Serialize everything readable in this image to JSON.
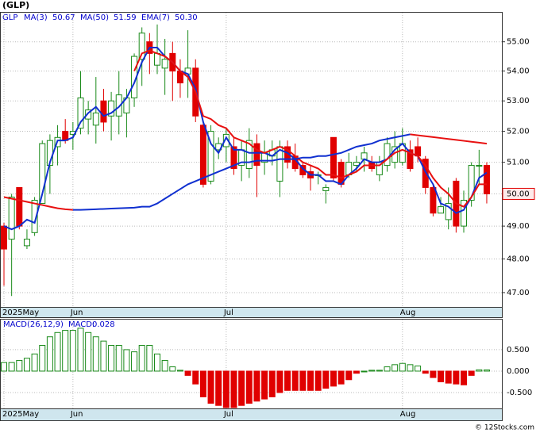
{
  "chart_data": {
    "type": "candlestick",
    "title": "(GLP)",
    "legend": [
      "GLP",
      "MA(3)",
      "50.67",
      "MA(50)",
      "51.59",
      "EMA(7)",
      "50.30"
    ],
    "log_scale": true,
    "grid": true,
    "ylim": [
      46.58,
      56.04
    ],
    "yticks": [
      {
        "value": 55,
        "label": "55.00"
      },
      {
        "value": 54,
        "label": "54.00"
      },
      {
        "value": 53,
        "label": "53.00"
      },
      {
        "value": 52,
        "label": "52.00"
      },
      {
        "value": 51,
        "label": "51.00"
      },
      {
        "value": 50,
        "label": "50.00"
      },
      {
        "value": 49,
        "label": "49.00"
      },
      {
        "value": 48,
        "label": "48.00"
      },
      {
        "value": 47,
        "label": "47.00"
      }
    ],
    "xticks": [
      {
        "value": 0,
        "label": "2025May"
      },
      {
        "value": 9,
        "label": "Jun"
      },
      {
        "value": 29,
        "label": "Jul"
      },
      {
        "value": 52,
        "label": "Aug"
      }
    ],
    "up_color": "#1a8a1a",
    "down_color": "#e00000",
    "open": [
      49.0,
      48.6,
      50.2,
      48.4,
      48.8,
      49.7,
      50.9,
      51.5,
      52.0,
      51.9,
      52.1,
      52.4,
      52.2,
      53.0,
      52.5,
      52.5,
      52.6,
      53.1,
      54.4,
      55.0,
      54.2,
      54.1,
      54.6,
      54.0,
      53.9,
      54.1,
      52.2,
      50.4,
      51.4,
      51.5,
      51.5,
      50.9,
      50.8,
      51.6,
      51.0,
      51.2,
      50.4,
      51.5,
      51.2,
      50.9,
      50.7,
      50.6,
      50.1,
      51.8,
      51.0,
      50.6,
      50.9,
      51.1,
      51.0,
      50.6,
      50.9,
      51.0,
      51.0,
      51.4,
      51.5,
      51.1,
      50.2,
      49.4,
      49.2,
      50.4,
      49.0,
      49.8,
      50.9,
      50.9
    ],
    "high": [
      49.1,
      50.0,
      50.2,
      48.9,
      49.9,
      51.7,
      51.9,
      52.2,
      52.4,
      52.3,
      54.0,
      53.0,
      53.8,
      53.4,
      53.3,
      54.0,
      53.4,
      54.6,
      55.5,
      55.3,
      55.6,
      55.1,
      55.0,
      54.4,
      55.4,
      54.4,
      52.3,
      52.2,
      51.8,
      52.1,
      51.8,
      51.7,
      52.1,
      51.9,
      51.7,
      51.7,
      51.7,
      51.7,
      51.6,
      51.0,
      50.9,
      50.7,
      50.3,
      51.8,
      51.1,
      51.3,
      51.2,
      51.5,
      51.2,
      51.2,
      51.8,
      52.0,
      52.1,
      51.7,
      51.8,
      51.2,
      50.3,
      49.9,
      50.2,
      50.5,
      50.1,
      51.0,
      51.4,
      51.0
    ],
    "low": [
      47.2,
      46.9,
      48.9,
      48.3,
      48.7,
      49.7,
      50.0,
      50.9,
      51.6,
      51.4,
      51.9,
      51.9,
      51.6,
      52.0,
      51.7,
      51.9,
      51.8,
      52.8,
      53.5,
      53.9,
      53.9,
      53.2,
      53.0,
      53.1,
      53.1,
      52.3,
      50.2,
      50.3,
      51.1,
      51.0,
      50.6,
      50.4,
      50.5,
      49.9,
      50.6,
      50.9,
      49.9,
      50.8,
      50.7,
      50.5,
      50.1,
      50.3,
      49.7,
      50.4,
      50.2,
      50.5,
      50.7,
      50.7,
      50.7,
      50.4,
      50.7,
      50.8,
      50.9,
      50.7,
      51.0,
      50.0,
      49.3,
      49.4,
      48.9,
      48.8,
      48.8,
      49.6,
      50.3,
      49.7
    ],
    "close": [
      48.3,
      49.9,
      49.0,
      48.6,
      49.8,
      51.6,
      51.7,
      51.8,
      51.7,
      52.0,
      53.1,
      52.7,
      52.6,
      52.3,
      53.0,
      53.2,
      53.1,
      54.5,
      55.3,
      54.6,
      54.6,
      54.4,
      54.0,
      53.6,
      54.1,
      52.5,
      50.3,
      52.0,
      51.6,
      51.9,
      50.8,
      51.4,
      51.7,
      50.9,
      51.3,
      51.4,
      51.5,
      51.0,
      50.8,
      50.6,
      50.5,
      50.6,
      50.2,
      50.5,
      50.3,
      51.0,
      51.0,
      51.3,
      50.8,
      51.0,
      51.6,
      51.5,
      51.6,
      50.8,
      51.2,
      50.2,
      49.4,
      49.6,
      49.7,
      49.0,
      49.8,
      50.9,
      50.9,
      50.0
    ],
    "last_price": {
      "value": 50.0,
      "label": "50.00"
    },
    "lines": [
      {
        "color": "#1030d0",
        "values": [
          49.0,
          48.9,
          49.0,
          49.2,
          49.1,
          50.0,
          51.0,
          51.7,
          51.7,
          51.8,
          52.3,
          52.6,
          52.8,
          52.5,
          52.6,
          52.8,
          53.1,
          53.6,
          54.3,
          54.8,
          54.8,
          54.5,
          54.3,
          54.0,
          53.9,
          53.4,
          52.3,
          51.6,
          51.3,
          51.8,
          51.4,
          51.4,
          51.3,
          51.3,
          51.3,
          51.2,
          51.4,
          51.3,
          51.1,
          50.8,
          50.6,
          50.6,
          50.4,
          50.4,
          50.3,
          50.6,
          50.8,
          51.1,
          51.0,
          51.0,
          51.1,
          51.4,
          51.6,
          51.3,
          51.2,
          50.7,
          50.3,
          49.7,
          49.6,
          49.4,
          49.5,
          49.9,
          50.5,
          50.67
        ]
      },
      {
        "color": "#e81010",
        "values": [
          null,
          null,
          null,
          null,
          null,
          null,
          null,
          null,
          null,
          null,
          null,
          null,
          null,
          null,
          null,
          null,
          null,
          54.0,
          54.6,
          54.7,
          54.6,
          54.5,
          54.3,
          54.0,
          53.8,
          53.3,
          52.5,
          52.4,
          52.2,
          52.1,
          51.8,
          51.7,
          51.6,
          51.4,
          51.3,
          51.4,
          51.5,
          51.4,
          51.2,
          51.0,
          50.9,
          50.8,
          50.6,
          50.6,
          50.5,
          50.6,
          50.7,
          50.9,
          50.9,
          50.9,
          51.1,
          51.3,
          51.4,
          51.3,
          51.2,
          50.9,
          50.5,
          50.2,
          50.0,
          49.7,
          49.6,
          49.9,
          50.3,
          50.3
        ]
      },
      {
        "color": "#1030d0",
        "values": [
          null,
          null,
          null,
          null,
          null,
          null,
          null,
          null,
          null,
          49.5,
          49.5,
          49.51,
          49.52,
          49.53,
          49.54,
          49.55,
          49.56,
          49.57,
          49.6,
          49.6,
          49.7,
          49.85,
          50.0,
          50.15,
          50.3,
          50.4,
          50.5,
          50.6,
          50.7,
          50.8,
          50.9,
          51.0,
          51.0,
          51.05,
          51.05,
          51.05,
          51.1,
          51.1,
          51.1,
          51.15,
          51.15,
          51.2,
          51.2,
          51.25,
          51.3,
          51.4,
          51.5,
          51.55,
          51.6,
          51.7,
          51.75,
          51.8,
          51.85,
          51.9,
          null,
          null,
          null,
          null,
          null,
          null,
          null,
          null,
          null,
          null
        ]
      },
      {
        "color": "#e81010",
        "values": [
          49.9,
          49.85,
          49.8,
          49.75,
          49.7,
          49.65,
          49.6,
          49.55,
          49.52,
          49.5,
          null,
          null,
          null,
          null,
          null,
          null,
          null,
          null,
          null,
          null,
          null,
          null,
          null,
          null,
          null,
          null,
          null,
          null,
          null,
          null,
          null,
          null,
          null,
          null,
          null,
          null,
          null,
          null,
          null,
          null,
          null,
          null,
          null,
          null,
          null,
          null,
          null,
          null,
          null,
          null,
          null,
          null,
          null,
          51.9,
          51.87,
          51.84,
          51.81,
          51.78,
          51.75,
          51.72,
          51.69,
          51.66,
          51.63,
          51.6
        ]
      }
    ],
    "macd": {
      "label": "MACD(26,12,9)",
      "name": "MACD:",
      "current": "0.028",
      "ylim": [
        -0.87,
        1.22
      ],
      "yticks": [
        {
          "value": 0.5,
          "label": "0.500"
        },
        {
          "value": 0,
          "label": "0.000"
        },
        {
          "value": -0.5,
          "label": "-0.500"
        }
      ],
      "values": [
        0.2,
        0.2,
        0.25,
        0.3,
        0.4,
        0.6,
        0.8,
        0.9,
        0.95,
        0.95,
        1.0,
        0.9,
        0.8,
        0.7,
        0.6,
        0.6,
        0.5,
        0.45,
        0.6,
        0.6,
        0.4,
        0.25,
        0.1,
        0.02,
        -0.1,
        -0.3,
        -0.6,
        -0.75,
        -0.8,
        -0.85,
        -0.85,
        -0.8,
        -0.75,
        -0.7,
        -0.65,
        -0.6,
        -0.5,
        -0.45,
        -0.45,
        -0.45,
        -0.45,
        -0.45,
        -0.4,
        -0.35,
        -0.3,
        -0.2,
        -0.05,
        0.0,
        0.02,
        0.02,
        0.1,
        0.15,
        0.18,
        0.15,
        0.12,
        -0.05,
        -0.15,
        -0.25,
        -0.28,
        -0.3,
        -0.32,
        -0.1,
        0.03,
        0.028
      ]
    },
    "footer": "© 12Stocks.com"
  }
}
